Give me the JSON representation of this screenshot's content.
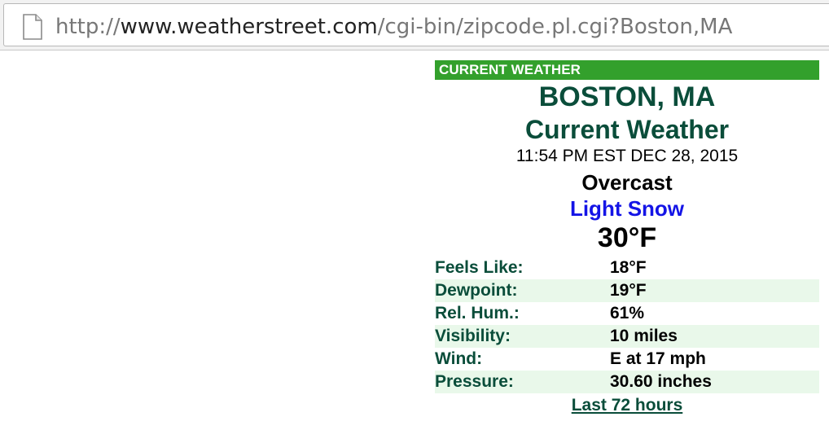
{
  "browser": {
    "url_prefix": "http://",
    "url_host": "www.weatherstreet.com",
    "url_path": "/cgi-bin/zipcode.pl.cgi?Boston,MA",
    "page_icon": "document-icon"
  },
  "panel": {
    "header": "CURRENT WEATHER",
    "city": "BOSTON, MA",
    "subtitle": "Current Weather",
    "timestamp": "11:54 PM EST DEC 28, 2015",
    "condition": "Overcast",
    "precipitation": "Light Snow",
    "temperature": "30°F",
    "observations": [
      {
        "label": "Feels Like:",
        "value": "18°F"
      },
      {
        "label": "Dewpoint:",
        "value": "19°F"
      },
      {
        "label": "Rel. Hum.:",
        "value": "61%"
      },
      {
        "label": "Visibility:",
        "value": "10 miles"
      },
      {
        "label": "Wind:",
        "value": "E at 17 mph"
      },
      {
        "label": "Pressure:",
        "value": "30.60 inches"
      }
    ],
    "history_link": "Last 72 hours"
  },
  "colors": {
    "header_green": "#33a02c",
    "dark_green_text": "#0a4d3a",
    "precip_blue": "#1414e6",
    "row_shade": "#e9f8ea"
  }
}
